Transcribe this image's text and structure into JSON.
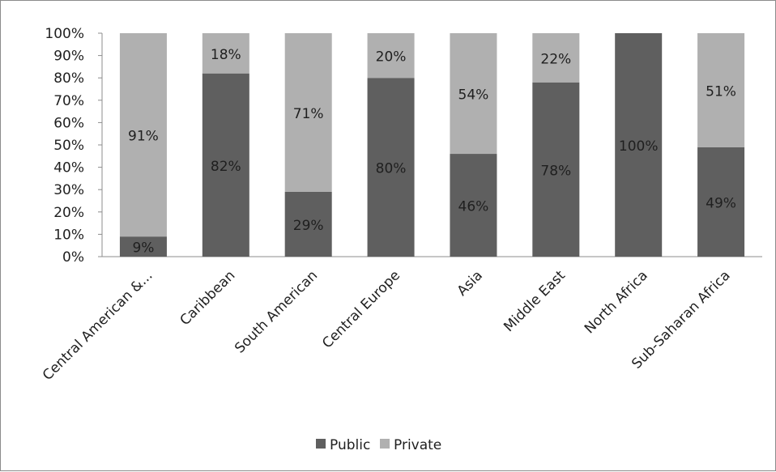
{
  "chart_data": {
    "type": "bar",
    "stacked": true,
    "percent_stacked": true,
    "categories": [
      "Central American &...",
      "Caribbean",
      "South American",
      "Central Europe",
      "Asia",
      "Middle East",
      "North Africa",
      "Sub-Saharan Africa"
    ],
    "series": [
      {
        "name": "Public",
        "color": "#5f5f5f",
        "values": [
          9,
          82,
          29,
          80,
          46,
          78,
          100,
          49
        ]
      },
      {
        "name": "Private",
        "color": "#b0b0b0",
        "values": [
          91,
          18,
          71,
          20,
          54,
          22,
          0,
          51
        ]
      }
    ],
    "data_labels": {
      "Public": [
        "9%",
        "82%",
        "29%",
        "80%",
        "46%",
        "78%",
        "100%",
        "49%"
      ],
      "Private": [
        "91%",
        "18%",
        "71%",
        "20%",
        "54%",
        "22%",
        "",
        "51%"
      ]
    },
    "y_ticks": [
      "0%",
      "10%",
      "20%",
      "30%",
      "40%",
      "50%",
      "60%",
      "70%",
      "80%",
      "90%",
      "100%"
    ],
    "ylim": [
      0,
      100
    ],
    "xlabel": "",
    "ylabel": "",
    "grid": false,
    "legend": {
      "position": "bottom",
      "entries": [
        "Public",
        "Private"
      ]
    }
  }
}
